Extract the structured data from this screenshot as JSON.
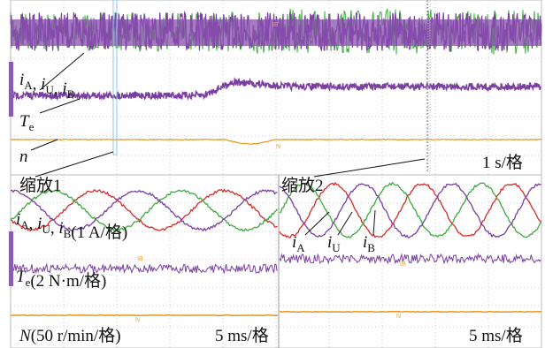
{
  "overview": {
    "currents": [
      {
        "symbol": "i",
        "sub": "A"
      },
      {
        "symbol": "i",
        "sub": "U"
      },
      {
        "symbol": "i",
        "sub": "B"
      }
    ],
    "separator": ", ",
    "torque": {
      "symbol": "T",
      "sub": "e"
    },
    "speed": "n",
    "timebase": "1 s/格",
    "zoom_labels": [
      "缩放1",
      "缩放2"
    ],
    "scope_markers": [
      "IB",
      "N"
    ]
  },
  "zoom": {
    "currents_unit": "(1 A/格)",
    "torque_unit": "(2 N·m/格)",
    "speed_label": "N",
    "speed_unit": "(50 r/min/格)",
    "timebase": [
      "5 ms/格",
      "5 ms/格"
    ],
    "annotations": [
      {
        "symbol": "i",
        "sub": "A"
      },
      {
        "symbol": "i",
        "sub": "U"
      },
      {
        "symbol": "i",
        "sub": "B"
      }
    ],
    "scope_markers": [
      "IB",
      "IB",
      "N",
      "N"
    ]
  }
}
